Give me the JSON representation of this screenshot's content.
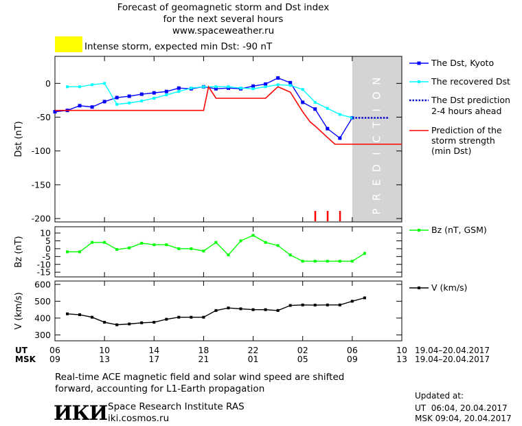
{
  "header": {
    "title_line1": "Forecast of geomagnetic storm and Dst index",
    "title_line2": "for the next several hours",
    "title_line3": "www.spaceweather.ru",
    "status_text": "Intense storm, expected min Dst: -90 nT",
    "status_color": "#ffff00"
  },
  "chart_data": [
    {
      "type": "line",
      "panel": "dst",
      "ylabel": "Dst (nT)",
      "ylim": [
        -205,
        40
      ],
      "yticks": [
        0,
        -50,
        -100,
        -150,
        -200
      ],
      "ytick_labels": [
        "0",
        "-50",
        "-100",
        "-150",
        "-200"
      ],
      "prediction_label": "PREDICTION",
      "prediction_region": [
        24,
        28
      ],
      "series": [
        {
          "name": "The Dst, Kyoto",
          "color": "#0000ff",
          "x": [
            0,
            1,
            2,
            3,
            4,
            5,
            6,
            7,
            8,
            9,
            10,
            11,
            12,
            13,
            14,
            15,
            16,
            17,
            18,
            19,
            20,
            21,
            22,
            23,
            24
          ],
          "y": [
            -42,
            -40,
            -33,
            -35,
            -27,
            -21,
            -19,
            -16,
            -14,
            -12,
            -7,
            -8,
            -5,
            -8,
            -7,
            -8,
            -4,
            -1,
            8,
            1,
            -28,
            -38,
            -67,
            -81,
            -51
          ]
        },
        {
          "name": "The recovered Dst",
          "color": "#00ffff",
          "x": [
            1,
            2,
            3,
            4,
            5,
            6,
            7,
            8,
            9,
            10,
            11,
            12,
            13,
            14,
            15,
            16,
            17,
            18,
            19,
            20,
            21,
            22,
            23,
            24
          ],
          "y": [
            -5,
            -5,
            -2,
            0,
            -31,
            -29,
            -26,
            -22,
            -17,
            -12,
            -7,
            -5,
            -5,
            -5,
            -7,
            -8,
            -5,
            -2,
            -3,
            -9,
            -28,
            -37,
            -46,
            -51
          ]
        },
        {
          "name": "The Dst prediction 2-4 hours ahead",
          "color": "#0000cc",
          "x": [
            24,
            25,
            26,
            27
          ],
          "y": [
            -51,
            -51,
            -51,
            -51
          ]
        },
        {
          "name": "Prediction of the storm strength (min Dst)",
          "color": "#ff0000",
          "x": [
            0,
            1,
            2,
            3,
            4,
            5,
            6,
            7,
            8,
            9,
            10,
            11,
            12,
            12.4,
            13,
            14,
            15,
            16,
            17,
            18,
            19,
            20,
            20.6,
            21,
            22,
            22.6,
            24,
            28
          ],
          "y": [
            -40,
            -40,
            -40,
            -40,
            -40,
            -40,
            -40,
            -40,
            -40,
            -40,
            -40,
            -40,
            -40,
            -5,
            -22,
            -22,
            -22,
            -22,
            -22,
            -5,
            -13,
            -42,
            -57,
            -63,
            -80,
            -90,
            -90,
            -90
          ]
        }
      ],
      "markers_x": [
        21,
        22,
        23
      ]
    },
    {
      "type": "line",
      "panel": "bz",
      "ylabel": "Bz (nT)",
      "ylim": [
        -18,
        14
      ],
      "yticks": [
        10,
        5,
        0,
        -5,
        -10,
        -15
      ],
      "ytick_labels": [
        "10",
        "5",
        "0",
        "-5",
        "-10",
        "-15"
      ],
      "series": [
        {
          "name": "Bz (nT, GSM)",
          "color": "#00ff00",
          "x": [
            1,
            2,
            3,
            4,
            5,
            6,
            7,
            8,
            9,
            10,
            11,
            12,
            13,
            14,
            15,
            16,
            17,
            18,
            19,
            20,
            21,
            22,
            23,
            24,
            25
          ],
          "y": [
            -2,
            -2,
            4,
            4,
            -0.5,
            0.5,
            3.5,
            2.5,
            2.5,
            0,
            0,
            -1.5,
            4,
            -4,
            5,
            8.5,
            4,
            2,
            -4,
            -8,
            -8,
            -8,
            -8,
            -8,
            -3
          ]
        }
      ]
    },
    {
      "type": "line",
      "panel": "v",
      "ylabel": "V (km/s)",
      "ylim": [
        265,
        620
      ],
      "yticks": [
        300,
        400,
        500,
        600
      ],
      "ytick_labels": [
        "300",
        "400",
        "500",
        "600"
      ],
      "series": [
        {
          "name": "V (km/s)",
          "color": "#000000",
          "x": [
            1,
            2,
            3,
            4,
            5,
            6,
            7,
            8,
            9,
            10,
            11,
            12,
            13,
            14,
            15,
            16,
            17,
            18,
            19,
            20,
            21,
            22,
            23,
            24,
            25
          ],
          "y": [
            425,
            420,
            405,
            375,
            360,
            365,
            372,
            375,
            393,
            405,
            405,
            405,
            445,
            460,
            455,
            450,
            450,
            445,
            475,
            478,
            477,
            478,
            478,
            500,
            520
          ]
        }
      ]
    }
  ],
  "time_axis": {
    "xlim": [
      0,
      28
    ],
    "tick_positions": [
      0,
      4,
      8,
      12,
      16,
      20,
      24,
      28
    ],
    "ut_label": "UT",
    "msk_label": "MSK",
    "ut_ticks": [
      "06",
      "10",
      "14",
      "18",
      "22",
      "02",
      "06",
      "10"
    ],
    "msk_ticks": [
      "09",
      "13",
      "17",
      "21",
      "01",
      "05",
      "09",
      "13"
    ],
    "ut_range": "19.04–20.04.2017",
    "msk_range": "19.04–20.04.2017"
  },
  "footer": {
    "note_line1": "Real-time ACE magnetic field and solar wind speed are shifted",
    "note_line2": "forward, accounting for L1-Earth propagation",
    "logo_text": "ИКИ",
    "institute": "Space Research Institute RAS",
    "website": "iki.cosmos.ru",
    "updated_label": "Updated at:",
    "updated_ut": "UT  06:04, 20.04.2017",
    "updated_msk": "MSK 09:04, 20.04.2017"
  },
  "legend": {
    "dst_kyoto": "The Dst, Kyoto",
    "recovered": "The recovered Dst",
    "prediction_line1": "The Dst prediction",
    "prediction_line2": "2-4 hours ahead",
    "strength_line1": "Prediction of the",
    "strength_line2": "storm strength",
    "strength_line3": "(min Dst)",
    "bz": "Bz (nT, GSM)",
    "v": "V (km/s)"
  }
}
